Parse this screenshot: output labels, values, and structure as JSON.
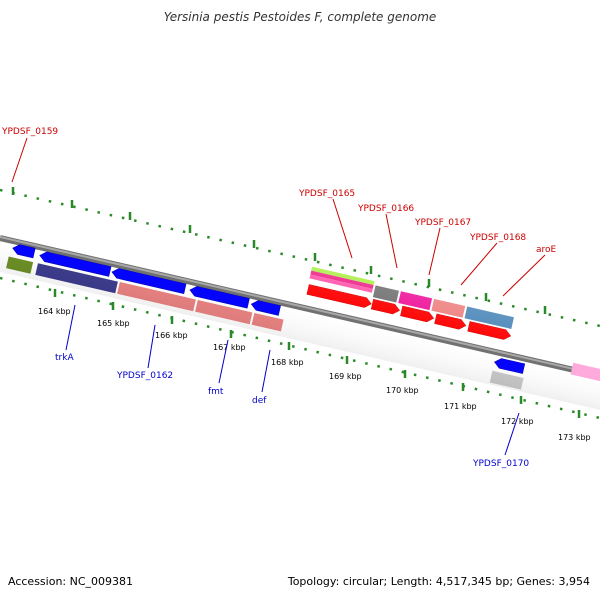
{
  "title": "Yersinia pestis Pestoides F, complete genome",
  "footer": {
    "accession": "Accession: NC_009381",
    "topology": "Topology: circular; Length: 4,517,345 bp; Genes: 3,954"
  },
  "colors": {
    "backbone": "#8c8c8c",
    "tick": "#2a8a2a",
    "top_label": "#cc0000",
    "bottom_label": "#0000cc"
  },
  "ticks": [
    "164 kbp",
    "165 kbp",
    "166 kbp",
    "167 kbp",
    "168 kbp",
    "169 kbp",
    "170 kbp",
    "171 kbp",
    "172 kbp",
    "173 kbp"
  ],
  "labels_top": [
    "YPDSF_0159",
    "YPDSF_0165",
    "YPDSF_0166",
    "YPDSF_0167",
    "YPDSF_0168",
    "aroE"
  ],
  "labels_bottom": [
    "trkA",
    "YPDSF_0162",
    "fmt",
    "def",
    "YPDSF_0170"
  ]
}
